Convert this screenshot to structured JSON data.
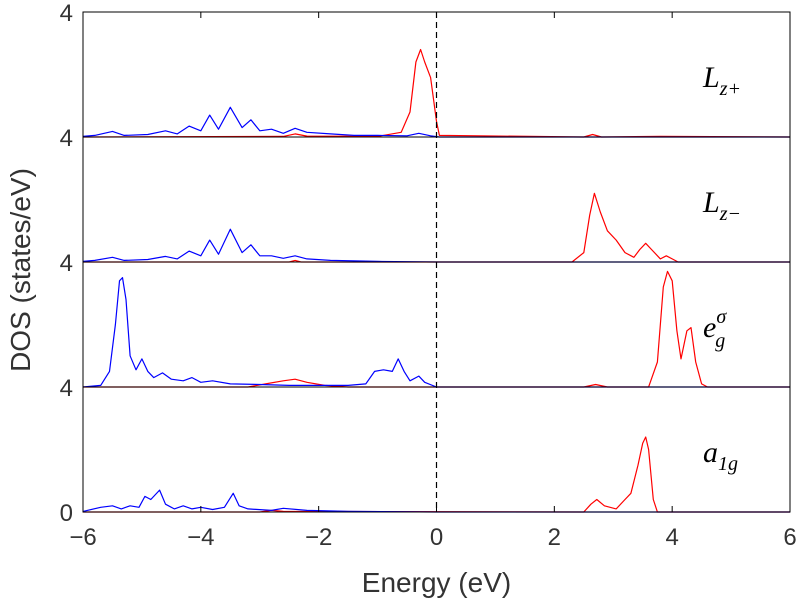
{
  "chart_data": {
    "type": "line",
    "xlabel": "Energy (eV)",
    "ylabel": "DOS (states/eV)",
    "xlim": [
      -6,
      6
    ],
    "x_ticks": [
      "−6",
      "−4",
      "−2",
      "0",
      "2",
      "4",
      "6"
    ],
    "y_tick_labels": [
      "4",
      "4",
      "4",
      "4",
      "0"
    ],
    "fermi_line": {
      "x": 0,
      "style": "dashed"
    },
    "series_colors": {
      "blue": "#0000ff",
      "red": "#ff0000"
    },
    "panels": [
      {
        "label": "L",
        "label_sub": "z+",
        "ylim": [
          0,
          4
        ],
        "blue": [
          [
            -6,
            0.02
          ],
          [
            -5.8,
            0.05
          ],
          [
            -5.5,
            0.18
          ],
          [
            -5.3,
            0.05
          ],
          [
            -4.9,
            0.08
          ],
          [
            -4.6,
            0.2
          ],
          [
            -4.4,
            0.1
          ],
          [
            -4.2,
            0.35
          ],
          [
            -4.0,
            0.2
          ],
          [
            -3.85,
            0.7
          ],
          [
            -3.7,
            0.25
          ],
          [
            -3.5,
            0.95
          ],
          [
            -3.3,
            0.3
          ],
          [
            -3.15,
            0.55
          ],
          [
            -3.0,
            0.2
          ],
          [
            -2.8,
            0.25
          ],
          [
            -2.6,
            0.12
          ],
          [
            -2.4,
            0.28
          ],
          [
            -2.2,
            0.15
          ],
          [
            -1.8,
            0.1
          ],
          [
            -1.4,
            0.05
          ],
          [
            -1.0,
            0.05
          ],
          [
            -0.5,
            0.04
          ],
          [
            -0.3,
            0.12
          ],
          [
            -0.1,
            0.04
          ],
          [
            0.05,
            0
          ],
          [
            6,
            0
          ]
        ],
        "red": [
          [
            -6,
            0
          ],
          [
            -2.6,
            0.02
          ],
          [
            -2.4,
            0.1
          ],
          [
            -2.2,
            0.03
          ],
          [
            -1.0,
            0.02
          ],
          [
            -0.6,
            0.15
          ],
          [
            -0.45,
            0.8
          ],
          [
            -0.35,
            2.4
          ],
          [
            -0.27,
            2.8
          ],
          [
            -0.2,
            2.4
          ],
          [
            -0.1,
            1.9
          ],
          [
            0.0,
            0.5
          ],
          [
            0.05,
            0.05
          ],
          [
            2.5,
            0
          ],
          [
            2.65,
            0.08
          ],
          [
            2.8,
            0
          ],
          [
            3.8,
            0.02
          ],
          [
            6,
            0
          ]
        ]
      },
      {
        "label": "L",
        "label_sub": "z−",
        "ylim": [
          0,
          4
        ],
        "blue": [
          [
            -6,
            0.02
          ],
          [
            -5.8,
            0.05
          ],
          [
            -5.5,
            0.15
          ],
          [
            -5.3,
            0.05
          ],
          [
            -4.9,
            0.08
          ],
          [
            -4.6,
            0.18
          ],
          [
            -4.4,
            0.1
          ],
          [
            -4.2,
            0.35
          ],
          [
            -4.0,
            0.2
          ],
          [
            -3.85,
            0.7
          ],
          [
            -3.7,
            0.25
          ],
          [
            -3.5,
            1.05
          ],
          [
            -3.3,
            0.3
          ],
          [
            -3.15,
            0.55
          ],
          [
            -3.0,
            0.2
          ],
          [
            -2.8,
            0.2
          ],
          [
            -2.6,
            0.12
          ],
          [
            -2.4,
            0.2
          ],
          [
            -2.2,
            0.1
          ],
          [
            -1.8,
            0.05
          ],
          [
            -1.0,
            0.02
          ],
          [
            0,
            0
          ],
          [
            6,
            0
          ]
        ],
        "red": [
          [
            -6,
            0
          ],
          [
            -2.5,
            0
          ],
          [
            -2.4,
            0.05
          ],
          [
            -2.3,
            0
          ],
          [
            2.3,
            0
          ],
          [
            2.5,
            0.3
          ],
          [
            2.6,
            1.5
          ],
          [
            2.68,
            2.2
          ],
          [
            2.78,
            1.6
          ],
          [
            2.9,
            1.0
          ],
          [
            3.05,
            0.7
          ],
          [
            3.2,
            0.3
          ],
          [
            3.35,
            0.15
          ],
          [
            3.45,
            0.4
          ],
          [
            3.55,
            0.6
          ],
          [
            3.65,
            0.4
          ],
          [
            3.8,
            0.1
          ],
          [
            3.9,
            0.2
          ],
          [
            4.0,
            0.1
          ],
          [
            4.1,
            0
          ],
          [
            6,
            0
          ]
        ]
      },
      {
        "label": "e",
        "label_sub": "g",
        "label_sup": "σ",
        "ylim": [
          0,
          4
        ],
        "blue": [
          [
            -6,
            0
          ],
          [
            -5.7,
            0.05
          ],
          [
            -5.55,
            0.5
          ],
          [
            -5.45,
            2.0
          ],
          [
            -5.38,
            3.4
          ],
          [
            -5.33,
            3.5
          ],
          [
            -5.27,
            2.8
          ],
          [
            -5.2,
            1.0
          ],
          [
            -5.1,
            0.55
          ],
          [
            -5.0,
            0.9
          ],
          [
            -4.9,
            0.5
          ],
          [
            -4.8,
            0.3
          ],
          [
            -4.65,
            0.45
          ],
          [
            -4.5,
            0.25
          ],
          [
            -4.3,
            0.2
          ],
          [
            -4.15,
            0.3
          ],
          [
            -4.0,
            0.15
          ],
          [
            -3.8,
            0.2
          ],
          [
            -3.5,
            0.1
          ],
          [
            -3.0,
            0.08
          ],
          [
            -2.5,
            0.05
          ],
          [
            -2.0,
            0.05
          ],
          [
            -1.5,
            0.05
          ],
          [
            -1.2,
            0.1
          ],
          [
            -1.05,
            0.5
          ],
          [
            -0.9,
            0.55
          ],
          [
            -0.75,
            0.5
          ],
          [
            -0.65,
            0.9
          ],
          [
            -0.55,
            0.5
          ],
          [
            -0.45,
            0.2
          ],
          [
            -0.3,
            0.35
          ],
          [
            -0.2,
            0.15
          ],
          [
            0,
            0
          ],
          [
            6,
            0
          ]
        ],
        "red": [
          [
            -6,
            0
          ],
          [
            -3.2,
            0
          ],
          [
            -2.9,
            0.1
          ],
          [
            -2.6,
            0.2
          ],
          [
            -2.4,
            0.25
          ],
          [
            -2.2,
            0.15
          ],
          [
            -1.9,
            0.05
          ],
          [
            -1.5,
            0
          ],
          [
            2.5,
            0
          ],
          [
            2.7,
            0.08
          ],
          [
            2.9,
            0
          ],
          [
            3.6,
            0
          ],
          [
            3.75,
            0.8
          ],
          [
            3.85,
            3.2
          ],
          [
            3.92,
            3.7
          ],
          [
            4.0,
            3.4
          ],
          [
            4.08,
            1.8
          ],
          [
            4.15,
            0.9
          ],
          [
            4.25,
            1.8
          ],
          [
            4.32,
            1.9
          ],
          [
            4.4,
            0.8
          ],
          [
            4.5,
            0.1
          ],
          [
            4.6,
            0
          ],
          [
            6,
            0
          ]
        ]
      },
      {
        "label": "a",
        "label_sub": "1g",
        "ylim": [
          0,
          4
        ],
        "blue": [
          [
            -6,
            0.02
          ],
          [
            -5.7,
            0.15
          ],
          [
            -5.5,
            0.2
          ],
          [
            -5.35,
            0.1
          ],
          [
            -5.2,
            0.2
          ],
          [
            -5.05,
            0.15
          ],
          [
            -4.95,
            0.5
          ],
          [
            -4.85,
            0.4
          ],
          [
            -4.7,
            0.7
          ],
          [
            -4.6,
            0.25
          ],
          [
            -4.45,
            0.1
          ],
          [
            -4.3,
            0.2
          ],
          [
            -4.15,
            0.1
          ],
          [
            -4.0,
            0.15
          ],
          [
            -3.8,
            0.08
          ],
          [
            -3.6,
            0.15
          ],
          [
            -3.45,
            0.6
          ],
          [
            -3.35,
            0.2
          ],
          [
            -3.2,
            0.1
          ],
          [
            -2.8,
            0.05
          ],
          [
            -2.6,
            0.12
          ],
          [
            -2.2,
            0.05
          ],
          [
            -1.5,
            0.02
          ],
          [
            0,
            0
          ],
          [
            6,
            0
          ]
        ],
        "red": [
          [
            -6,
            0
          ],
          [
            -3.0,
            0
          ],
          [
            -2.8,
            0.05
          ],
          [
            -2.6,
            0.02
          ],
          [
            2.5,
            0
          ],
          [
            2.62,
            0.25
          ],
          [
            2.72,
            0.4
          ],
          [
            2.85,
            0.2
          ],
          [
            3.05,
            0.1
          ],
          [
            3.2,
            0.4
          ],
          [
            3.3,
            0.6
          ],
          [
            3.42,
            1.5
          ],
          [
            3.5,
            2.2
          ],
          [
            3.55,
            2.4
          ],
          [
            3.6,
            2.0
          ],
          [
            3.68,
            0.4
          ],
          [
            3.75,
            0
          ],
          [
            6,
            0
          ]
        ]
      }
    ]
  }
}
